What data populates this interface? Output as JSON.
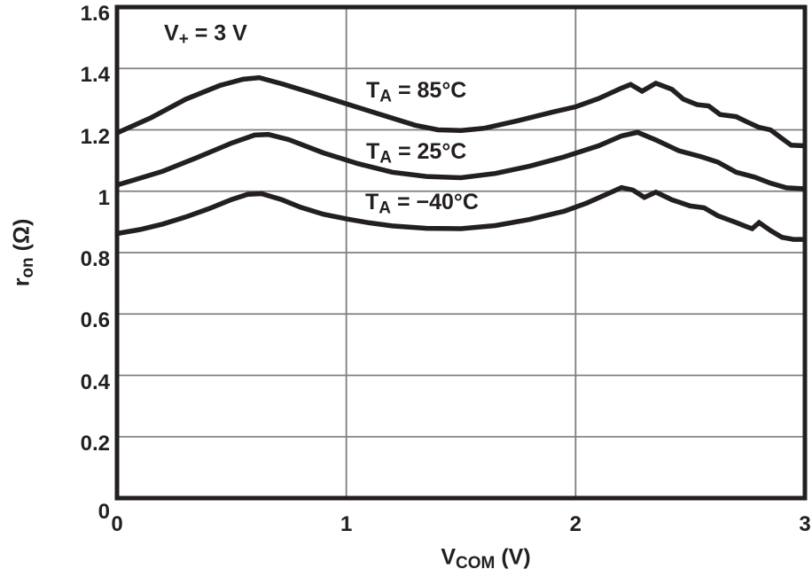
{
  "chart_data": {
    "type": "line",
    "title": "",
    "annotation": {
      "pre": "V",
      "sub": "+",
      "post": " = 3 V"
    },
    "xlabel": {
      "pre": "V",
      "sub": "COM",
      "post": " (V)"
    },
    "ylabel": {
      "pre": "r",
      "sub": "on",
      "post": " (Ω)"
    },
    "xlim": [
      0,
      3
    ],
    "ylim": [
      0,
      1.6
    ],
    "grid": true,
    "legend_position": "inline-curve-labels",
    "x_ticks": [
      {
        "v": 0,
        "label": "0"
      },
      {
        "v": 1,
        "label": "1"
      },
      {
        "v": 2,
        "label": "2"
      },
      {
        "v": 3,
        "label": "3"
      }
    ],
    "y_ticks": [
      {
        "v": 1.6,
        "label": "1.6"
      },
      {
        "v": 1.4,
        "label": "1.4"
      },
      {
        "v": 1.2,
        "label": "1.2"
      },
      {
        "v": 1.0,
        "label": "1"
      },
      {
        "v": 0.8,
        "label": "0.8"
      },
      {
        "v": 0.6,
        "label": "0.6"
      },
      {
        "v": 0.4,
        "label": "0.4"
      },
      {
        "v": 0.2,
        "label": "0.2"
      },
      {
        "v": 0,
        "label": "0"
      }
    ],
    "x_gridlines": [
      1,
      2
    ],
    "y_gridlines": [
      0.2,
      0.4,
      0.6,
      0.8,
      1.0,
      1.2,
      1.4
    ],
    "series": [
      {
        "key": "ta-85c",
        "name": "TA = 85°C",
        "label": {
          "pre": "T",
          "sub": "A",
          "post": " = 85°C"
        },
        "points": [
          [
            0,
            1.19
          ],
          [
            0.15,
            1.24
          ],
          [
            0.3,
            1.3
          ],
          [
            0.45,
            1.345
          ],
          [
            0.55,
            1.365
          ],
          [
            0.62,
            1.37
          ],
          [
            0.72,
            1.35
          ],
          [
            0.85,
            1.32
          ],
          [
            1.0,
            1.285
          ],
          [
            1.15,
            1.25
          ],
          [
            1.3,
            1.215
          ],
          [
            1.4,
            1.2
          ],
          [
            1.5,
            1.198
          ],
          [
            1.6,
            1.205
          ],
          [
            1.75,
            1.23
          ],
          [
            1.9,
            1.258
          ],
          [
            2.0,
            1.275
          ],
          [
            2.1,
            1.302
          ],
          [
            2.2,
            1.336
          ],
          [
            2.24,
            1.348
          ],
          [
            2.29,
            1.326
          ],
          [
            2.35,
            1.352
          ],
          [
            2.42,
            1.332
          ],
          [
            2.47,
            1.3
          ],
          [
            2.53,
            1.282
          ],
          [
            2.58,
            1.278
          ],
          [
            2.63,
            1.25
          ],
          [
            2.7,
            1.243
          ],
          [
            2.75,
            1.225
          ],
          [
            2.8,
            1.208
          ],
          [
            2.85,
            1.2
          ],
          [
            2.9,
            1.172
          ],
          [
            2.94,
            1.15
          ],
          [
            3.0,
            1.148
          ]
        ]
      },
      {
        "key": "ta-25c",
        "name": "TA = 25°C",
        "label": {
          "pre": "T",
          "sub": "A",
          "post": " = 25°C"
        },
        "points": [
          [
            0,
            1.02
          ],
          [
            0.08,
            1.038
          ],
          [
            0.2,
            1.065
          ],
          [
            0.35,
            1.11
          ],
          [
            0.5,
            1.157
          ],
          [
            0.6,
            1.183
          ],
          [
            0.66,
            1.185
          ],
          [
            0.75,
            1.168
          ],
          [
            0.9,
            1.125
          ],
          [
            1.05,
            1.09
          ],
          [
            1.2,
            1.062
          ],
          [
            1.35,
            1.048
          ],
          [
            1.5,
            1.044
          ],
          [
            1.65,
            1.058
          ],
          [
            1.8,
            1.082
          ],
          [
            1.95,
            1.112
          ],
          [
            2.1,
            1.148
          ],
          [
            2.2,
            1.18
          ],
          [
            2.27,
            1.192
          ],
          [
            2.35,
            1.167
          ],
          [
            2.45,
            1.132
          ],
          [
            2.55,
            1.112
          ],
          [
            2.62,
            1.095
          ],
          [
            2.7,
            1.062
          ],
          [
            2.78,
            1.046
          ],
          [
            2.85,
            1.026
          ],
          [
            2.92,
            1.011
          ],
          [
            3.0,
            1.008
          ]
        ]
      },
      {
        "key": "ta-minus40c",
        "name": "TA = −40°C",
        "label": {
          "pre": "T",
          "sub": "A",
          "post": " = −40°C"
        },
        "points": [
          [
            0,
            0.862
          ],
          [
            0.1,
            0.875
          ],
          [
            0.2,
            0.893
          ],
          [
            0.3,
            0.916
          ],
          [
            0.4,
            0.943
          ],
          [
            0.5,
            0.973
          ],
          [
            0.57,
            0.99
          ],
          [
            0.63,
            0.992
          ],
          [
            0.72,
            0.972
          ],
          [
            0.8,
            0.948
          ],
          [
            0.9,
            0.925
          ],
          [
            1.0,
            0.91
          ],
          [
            1.1,
            0.897
          ],
          [
            1.2,
            0.887
          ],
          [
            1.35,
            0.879
          ],
          [
            1.5,
            0.878
          ],
          [
            1.65,
            0.888
          ],
          [
            1.8,
            0.908
          ],
          [
            1.95,
            0.935
          ],
          [
            2.05,
            0.962
          ],
          [
            2.15,
            0.995
          ],
          [
            2.2,
            1.012
          ],
          [
            2.25,
            1.004
          ],
          [
            2.3,
            0.98
          ],
          [
            2.35,
            0.997
          ],
          [
            2.42,
            0.972
          ],
          [
            2.5,
            0.952
          ],
          [
            2.56,
            0.946
          ],
          [
            2.62,
            0.92
          ],
          [
            2.7,
            0.898
          ],
          [
            2.74,
            0.886
          ],
          [
            2.77,
            0.878
          ],
          [
            2.8,
            0.898
          ],
          [
            2.85,
            0.872
          ],
          [
            2.9,
            0.85
          ],
          [
            2.95,
            0.843
          ],
          [
            3.0,
            0.843
          ]
        ]
      }
    ]
  },
  "colors": {
    "curve": "#231f20",
    "grid": "#7f7f7f",
    "frame": "#231f20",
    "text": "#231f20",
    "background": "#ffffff"
  }
}
